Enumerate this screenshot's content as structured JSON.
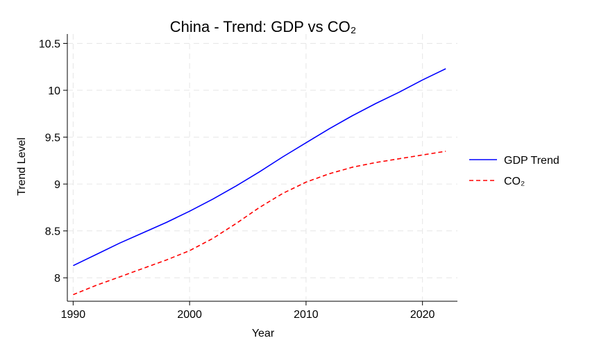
{
  "chart_data": {
    "type": "line",
    "title": "China - Trend: GDP vs CO₂",
    "xlabel": "Year",
    "ylabel": "Trend Level",
    "xlim": [
      1989.5,
      2023
    ],
    "ylim": [
      7.75,
      10.6
    ],
    "xticks": [
      1990,
      2000,
      2010,
      2020
    ],
    "yticks": [
      8,
      8.5,
      9,
      9.5,
      10,
      10.5
    ],
    "ytick_labels": [
      "8",
      "8.5",
      "9",
      "9.5",
      "10",
      "10.5"
    ],
    "grid": true,
    "legend_position": "right",
    "series": [
      {
        "name": "GDP Trend",
        "color": "#0000ff",
        "style": "solid",
        "x": [
          1990,
          1992,
          1994,
          1996,
          1998,
          2000,
          2002,
          2004,
          2006,
          2008,
          2010,
          2012,
          2014,
          2016,
          2018,
          2020,
          2022
        ],
        "y": [
          8.13,
          8.25,
          8.37,
          8.48,
          8.59,
          8.71,
          8.84,
          8.98,
          9.13,
          9.29,
          9.44,
          9.59,
          9.73,
          9.86,
          9.98,
          10.11,
          10.23
        ]
      },
      {
        "name": "CO₂",
        "color": "#ff0000",
        "style": "dashed",
        "x": [
          1990,
          1992,
          1994,
          1996,
          1998,
          2000,
          2002,
          2004,
          2006,
          2008,
          2010,
          2012,
          2014,
          2016,
          2018,
          2020,
          2022
        ],
        "y": [
          7.82,
          7.92,
          8.01,
          8.1,
          8.19,
          8.29,
          8.42,
          8.58,
          8.75,
          8.9,
          9.02,
          9.11,
          9.18,
          9.23,
          9.27,
          9.31,
          9.35
        ]
      }
    ]
  }
}
